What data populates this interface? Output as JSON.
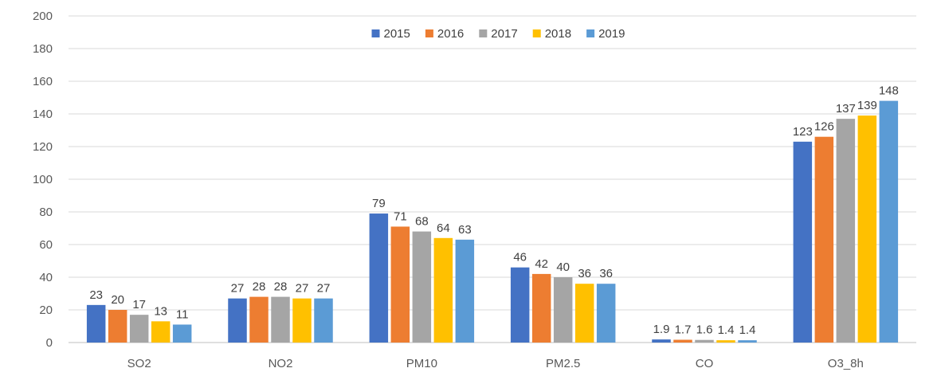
{
  "chart_data": {
    "type": "bar",
    "title": "",
    "xlabel": "",
    "ylabel": "",
    "ylim": [
      0,
      200
    ],
    "yticks": [
      0,
      20,
      40,
      60,
      80,
      100,
      120,
      140,
      160,
      180,
      200
    ],
    "grid": true,
    "legend_position": "top-center",
    "categories": [
      "SO2",
      "NO2",
      "PM10",
      "PM2.5",
      "CO",
      "O3_8h"
    ],
    "series": [
      {
        "name": "2015",
        "color": "#4472C4",
        "values": [
          23,
          27,
          79,
          46,
          1.9,
          123
        ],
        "labels": [
          "23",
          "27",
          "79",
          "46",
          "1.9",
          "123"
        ]
      },
      {
        "name": "2016",
        "color": "#ED7D31",
        "values": [
          20,
          28,
          71,
          42,
          1.7,
          126
        ],
        "labels": [
          "20",
          "28",
          "71",
          "42",
          "1.7",
          "126"
        ]
      },
      {
        "name": "2017",
        "color": "#A5A5A5",
        "values": [
          17,
          28,
          68,
          40,
          1.6,
          137
        ],
        "labels": [
          "17",
          "28",
          "68",
          "40",
          "1.6",
          "137"
        ]
      },
      {
        "name": "2018",
        "color": "#FFC000",
        "values": [
          13,
          27,
          64,
          36,
          1.4,
          139
        ],
        "labels": [
          "13",
          "27",
          "64",
          "36",
          "1.4",
          "139"
        ]
      },
      {
        "name": "2019",
        "color": "#5B9BD5",
        "values": [
          11,
          27,
          63,
          36,
          1.4,
          148
        ],
        "labels": [
          "11",
          "27",
          "63",
          "36",
          "1.4",
          "148"
        ]
      }
    ]
  }
}
